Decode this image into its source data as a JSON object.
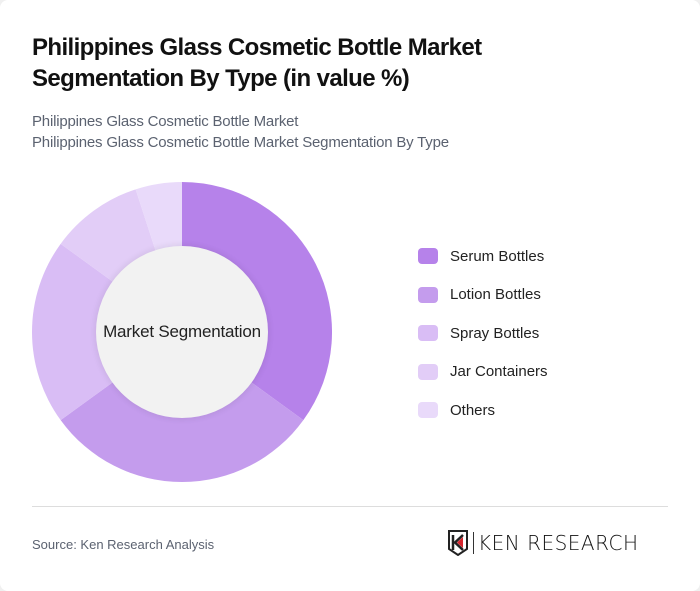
{
  "header": {
    "title": "Philippines Glass Cosmetic Bottle Market Segmentation By Type (in value %)",
    "subtitle_line1": "Philippines Glass Cosmetic Bottle Market",
    "subtitle_line2": "Philippines Glass Cosmetic Bottle Market Segmentation By Type"
  },
  "chart": {
    "center_label": "Market Segmentation"
  },
  "legend": [
    {
      "label": "Serum Bottles",
      "color": "#b682ea"
    },
    {
      "label": "Lotion Bottles",
      "color": "#c49ced"
    },
    {
      "label": "Spray Bottles",
      "color": "#d9bdf5"
    },
    {
      "label": "Jar Containers",
      "color": "#e2cdf7"
    },
    {
      "label": "Others",
      "color": "#e9dafa"
    }
  ],
  "footer": {
    "source": "Source: Ken Research Analysis",
    "logo_text": "KEN RESEARCH"
  },
  "chart_data": {
    "type": "pie",
    "variant": "donut",
    "title": "Philippines Glass Cosmetic Bottle Market Segmentation By Type (in value %)",
    "subtitle": "Philippines Glass Cosmetic Bottle Market Segmentation By Type",
    "center_label": "Market Segmentation",
    "categories": [
      "Serum Bottles",
      "Lotion Bottles",
      "Spray Bottles",
      "Jar Containers",
      "Others"
    ],
    "values": [
      35,
      30,
      20,
      10,
      5
    ],
    "colors": [
      "#b682ea",
      "#c49ced",
      "#d9bdf5",
      "#e2cdf7",
      "#e9dafa"
    ],
    "unit": "%",
    "legend_position": "right",
    "start_angle": "12 o'clock, clockwise"
  }
}
